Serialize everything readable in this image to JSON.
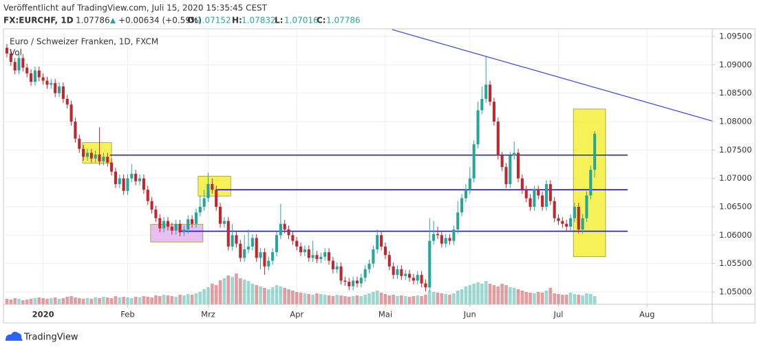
{
  "header": {
    "published": "Veröffentlicht auf TradingView.com, Juli 15, 2020 15:35:45 CEST",
    "symbol": "FX:EURCHF, 1D",
    "last": "1.07786",
    "change": "+0.00634 (+0.59%)",
    "quote": [
      {
        "label": "O:",
        "value": "1.07152"
      },
      {
        "label": "H:",
        "value": "1.07832"
      },
      {
        "label": "L:",
        "value": "1.07016"
      },
      {
        "label": "C:",
        "value": "1.07786"
      }
    ]
  },
  "chart_data": {
    "type": "candlestick",
    "legend": [
      "Euro / Schweizer Franken, 1D, FXCM",
      "Vol"
    ],
    "up_color": "#26a69a",
    "down_color": "#c0262c",
    "grid": true,
    "xlim": [
      -0.85,
      175.2
    ],
    "xticks": [
      {
        "value": 9,
        "label": "2020"
      },
      {
        "value": 30,
        "label": "Feb"
      },
      {
        "value": 50,
        "label": "Mrz"
      },
      {
        "value": 72,
        "label": "Apr"
      },
      {
        "value": 94,
        "label": "Mai"
      },
      {
        "value": 115,
        "label": "Jun"
      },
      {
        "value": 137,
        "label": "Jul"
      },
      {
        "value": 159,
        "label": "Aug"
      }
    ],
    "ylim": [
      1.04782,
      1.09633
    ],
    "yticks": [
      {
        "value": 1.05,
        "label": "1.05000"
      },
      {
        "value": 1.055,
        "label": "1.05500"
      },
      {
        "value": 1.06,
        "label": "1.06000"
      },
      {
        "value": 1.065,
        "label": "1.06500"
      },
      {
        "value": 1.07,
        "label": "1.07000"
      },
      {
        "value": 1.075,
        "label": "1.07500"
      },
      {
        "value": 1.08,
        "label": "1.08000"
      },
      {
        "value": 1.085,
        "label": "1.08500"
      },
      {
        "value": 1.09,
        "label": "1.09000"
      },
      {
        "value": 1.095,
        "label": "1.09500"
      }
    ],
    "open": [
      1.093,
      1.092,
      1.0905,
      1.089,
      1.0912,
      1.0895,
      1.0885,
      1.087,
      1.089,
      1.0878,
      1.0872,
      1.0865,
      1.0868,
      1.085,
      1.0862,
      1.084,
      1.083,
      1.08,
      1.077,
      1.0752,
      1.0738,
      1.0745,
      1.0735,
      1.0742,
      1.073,
      1.0738,
      1.0728,
      1.0712,
      1.069,
      1.07,
      1.0678,
      1.07,
      1.0708,
      1.0695,
      1.07,
      1.068,
      1.066,
      1.0645,
      1.063,
      1.0612,
      1.0625,
      1.0615,
      1.0608,
      1.062,
      1.0605,
      1.061,
      1.0628,
      1.062,
      1.064,
      1.065,
      1.0665,
      1.069,
      1.068,
      1.065,
      1.062,
      1.0625,
      1.058,
      1.06,
      1.0585,
      1.056,
      1.0575,
      1.058,
      1.0595,
      1.056,
      1.057,
      1.0545,
      1.0555,
      1.057,
      1.06,
      1.062,
      1.061,
      1.06,
      1.059,
      1.058,
      1.057,
      1.0575,
      1.056,
      1.0565,
      1.0558,
      1.0562,
      1.057,
      1.0555,
      1.054,
      1.0545,
      1.052,
      1.0518,
      1.051,
      1.052,
      1.0515,
      1.0525,
      1.054,
      1.055,
      1.0575,
      1.06,
      1.058,
      1.0565,
      1.0545,
      1.053,
      1.054,
      1.0528,
      1.0532,
      1.0525,
      1.052,
      1.053,
      1.0515,
      1.0508,
      1.059,
      1.0602,
      1.06,
      1.0585,
      1.0595,
      1.059,
      1.061,
      1.064,
      1.0665,
      1.068,
      1.07,
      1.076,
      1.082,
      1.084,
      1.0865,
      1.0835,
      1.08,
      1.074,
      1.072,
      1.069,
      1.074,
      1.0745,
      1.07,
      1.068,
      1.0665,
      1.065,
      1.068,
      1.067,
      1.065,
      1.069,
      1.066,
      1.063,
      1.0625,
      1.062,
      1.0615,
      1.063,
      1.065,
      1.061,
      1.063,
      1.067,
      1.07152
    ],
    "high": [
      1.0937,
      1.0927,
      1.0912,
      1.0919,
      1.0919,
      1.0902,
      1.0892,
      1.0897,
      1.0897,
      1.0885,
      1.0879,
      1.0875,
      1.0875,
      1.0869,
      1.0869,
      1.0847,
      1.0837,
      1.0807,
      1.0777,
      1.0759,
      1.0752,
      1.0752,
      1.0749,
      1.079,
      1.0745,
      1.0745,
      1.0735,
      1.0719,
      1.0707,
      1.0707,
      1.0707,
      1.0725,
      1.0715,
      1.0707,
      1.0707,
      1.0687,
      1.0667,
      1.0652,
      1.0637,
      1.0632,
      1.0632,
      1.0622,
      1.0627,
      1.0627,
      1.0617,
      1.0635,
      1.0635,
      1.0647,
      1.067,
      1.068,
      1.071,
      1.07,
      1.0687,
      1.0657,
      1.0632,
      1.0632,
      1.062,
      1.0607,
      1.0592,
      1.06,
      1.061,
      1.0602,
      1.0602,
      1.0577,
      1.0577,
      1.0562,
      1.0577,
      1.0607,
      1.0655,
      1.0627,
      1.0617,
      1.0607,
      1.0597,
      1.0587,
      1.0582,
      1.0582,
      1.059,
      1.0572,
      1.0569,
      1.0577,
      1.0577,
      1.0562,
      1.0552,
      1.0552,
      1.0527,
      1.0525,
      1.0527,
      1.0527,
      1.0532,
      1.0547,
      1.0557,
      1.0582,
      1.061,
      1.0607,
      1.0587,
      1.0572,
      1.0552,
      1.0547,
      1.0547,
      1.0539,
      1.0539,
      1.0532,
      1.0537,
      1.0537,
      1.0522,
      1.063,
      1.0625,
      1.0615,
      1.0607,
      1.0602,
      1.0602,
      1.0617,
      1.066,
      1.0672,
      1.069,
      1.072,
      1.0767,
      1.0835,
      1.0862,
      1.0915,
      1.0872,
      1.0842,
      1.0807,
      1.0747,
      1.0727,
      1.0747,
      1.0765,
      1.0752,
      1.0707,
      1.0687,
      1.0672,
      1.0687,
      1.0687,
      1.0677,
      1.0697,
      1.0697,
      1.0667,
      1.0637,
      1.0632,
      1.0627,
      1.0637,
      1.0657,
      1.0657,
      1.0637,
      1.0677,
      1.0722,
      1.07832
    ],
    "low": [
      1.0913,
      1.0898,
      1.0883,
      1.0883,
      1.0888,
      1.0878,
      1.0863,
      1.0863,
      1.0871,
      1.0865,
      1.0858,
      1.0858,
      1.0843,
      1.0843,
      1.0833,
      1.0823,
      1.0793,
      1.0763,
      1.0745,
      1.0731,
      1.0731,
      1.0728,
      1.0728,
      1.0723,
      1.0723,
      1.0721,
      1.0705,
      1.0683,
      1.0683,
      1.0671,
      1.0671,
      1.0693,
      1.0688,
      1.0688,
      1.0673,
      1.0653,
      1.0638,
      1.0623,
      1.0605,
      1.0605,
      1.0608,
      1.0601,
      1.0601,
      1.0598,
      1.0598,
      1.0603,
      1.0613,
      1.0613,
      1.0633,
      1.0643,
      1.0658,
      1.0673,
      1.0643,
      1.0613,
      1.0613,
      1.0573,
      1.0573,
      1.0578,
      1.0553,
      1.0553,
      1.0568,
      1.0573,
      1.0553,
      1.054,
      1.053,
      1.0538,
      1.0548,
      1.0563,
      1.0593,
      1.0603,
      1.0593,
      1.0583,
      1.0573,
      1.0563,
      1.0563,
      1.0553,
      1.0553,
      1.0551,
      1.0551,
      1.0555,
      1.0548,
      1.0533,
      1.0533,
      1.0513,
      1.0511,
      1.0503,
      1.0503,
      1.0508,
      1.0508,
      1.0518,
      1.0533,
      1.0543,
      1.0568,
      1.0573,
      1.0558,
      1.0538,
      1.0523,
      1.0523,
      1.0521,
      1.0521,
      1.0518,
      1.0513,
      1.0513,
      1.0508,
      1.0501,
      1.0501,
      1.0583,
      1.0593,
      1.0578,
      1.0578,
      1.0583,
      1.0583,
      1.0603,
      1.0633,
      1.0658,
      1.0673,
      1.0693,
      1.0753,
      1.0813,
      1.0833,
      1.0828,
      1.0793,
      1.0733,
      1.0713,
      1.0683,
      1.0683,
      1.0733,
      1.0693,
      1.0673,
      1.0658,
      1.0643,
      1.0643,
      1.0663,
      1.0643,
      1.0643,
      1.0653,
      1.0623,
      1.0618,
      1.0613,
      1.0608,
      1.0608,
      1.0623,
      1.0603,
      1.0603,
      1.0623,
      1.0663,
      1.07016
    ],
    "close": [
      1.092,
      1.0905,
      1.089,
      1.0912,
      1.0895,
      1.0885,
      1.087,
      1.089,
      1.0878,
      1.0872,
      1.0865,
      1.0868,
      1.085,
      1.0862,
      1.084,
      1.083,
      1.08,
      1.077,
      1.0752,
      1.0738,
      1.0745,
      1.0735,
      1.0742,
      1.073,
      1.0738,
      1.0728,
      1.0712,
      1.069,
      1.07,
      1.0678,
      1.07,
      1.0708,
      1.0695,
      1.07,
      1.068,
      1.066,
      1.0645,
      1.063,
      1.0612,
      1.0625,
      1.0615,
      1.0608,
      1.062,
      1.0605,
      1.061,
      1.0628,
      1.062,
      1.064,
      1.065,
      1.0665,
      1.069,
      1.068,
      1.065,
      1.062,
      1.0625,
      1.058,
      1.06,
      1.0585,
      1.056,
      1.0575,
      1.058,
      1.0595,
      1.056,
      1.057,
      1.0545,
      1.0555,
      1.057,
      1.06,
      1.062,
      1.061,
      1.06,
      1.059,
      1.058,
      1.057,
      1.0575,
      1.056,
      1.0565,
      1.0558,
      1.0562,
      1.057,
      1.0555,
      1.054,
      1.0545,
      1.052,
      1.0518,
      1.051,
      1.052,
      1.0515,
      1.0525,
      1.054,
      1.055,
      1.0575,
      1.06,
      1.058,
      1.0565,
      1.0545,
      1.053,
      1.054,
      1.0528,
      1.0532,
      1.0525,
      1.052,
      1.053,
      1.0515,
      1.0508,
      1.059,
      1.0602,
      1.06,
      1.0585,
      1.0595,
      1.059,
      1.061,
      1.064,
      1.0665,
      1.068,
      1.07,
      1.076,
      1.082,
      1.084,
      1.0865,
      1.0835,
      1.08,
      1.074,
      1.072,
      1.069,
      1.074,
      1.0745,
      1.07,
      1.068,
      1.0665,
      1.065,
      1.068,
      1.067,
      1.065,
      1.069,
      1.066,
      1.063,
      1.0625,
      1.062,
      1.0615,
      1.063,
      1.065,
      1.061,
      1.063,
      1.067,
      1.0715,
      1.07786
    ],
    "volume": [
      8,
      7,
      9,
      8,
      6,
      7,
      8,
      9,
      10,
      9,
      8,
      9,
      10,
      8,
      9,
      11,
      12,
      10,
      9,
      8,
      9,
      8,
      10,
      9,
      11,
      10,
      9,
      12,
      10,
      11,
      10,
      9,
      11,
      10,
      12,
      11,
      10,
      13,
      12,
      14,
      13,
      12,
      11,
      14,
      13,
      15,
      14,
      16,
      18,
      22,
      25,
      30,
      28,
      35,
      38,
      42,
      40,
      45,
      38,
      36,
      34,
      30,
      28,
      26,
      24,
      22,
      25,
      28,
      26,
      24,
      22,
      20,
      18,
      17,
      16,
      15,
      14,
      16,
      15,
      14,
      13,
      12,
      14,
      13,
      12,
      11,
      12,
      13,
      12,
      14,
      16,
      18,
      20,
      17,
      15,
      13,
      14,
      12,
      13,
      12,
      11,
      12,
      13,
      12,
      14,
      20,
      18,
      17,
      16,
      15,
      14,
      16,
      20,
      22,
      26,
      28,
      30,
      32,
      30,
      34,
      30,
      28,
      26,
      30,
      28,
      25,
      24,
      22,
      20,
      18,
      17,
      16,
      18,
      17,
      20,
      24,
      16,
      15,
      14,
      14,
      17,
      15,
      14,
      13,
      16,
      15,
      12
    ],
    "levels": [
      {
        "price": 1.0741,
        "from": 25.6,
        "to": 154.2,
        "color": "#1a1acc"
      },
      {
        "price": 1.068,
        "from": 52.1,
        "to": 154.2,
        "color": "#1a1acc"
      },
      {
        "price": 1.0607,
        "from": 42.7,
        "to": 154.2,
        "color": "#1a1acc"
      }
    ],
    "trendline": {
      "from": [
        95.7,
        1.0962
      ],
      "to": [
        175.2,
        1.0801
      ],
      "color": "#3344dd"
    },
    "boxes": [
      {
        "x": [
          18.8,
          26
        ],
        "y": [
          1.0727,
          1.0763
        ],
        "color": "#f5ef3a"
      },
      {
        "x": [
          47.5,
          55.6
        ],
        "y": [
          1.0669,
          1.0704
        ],
        "color": "#f5ef3a"
      },
      {
        "x": [
          35.7,
          48.7
        ],
        "y": [
          1.0588,
          1.0619
        ],
        "color": "#e5b3ee"
      },
      {
        "x": [
          140.7,
          148.7
        ],
        "y": [
          1.0562,
          1.0822
        ],
        "color": "#f5ef3a"
      }
    ]
  }
}
